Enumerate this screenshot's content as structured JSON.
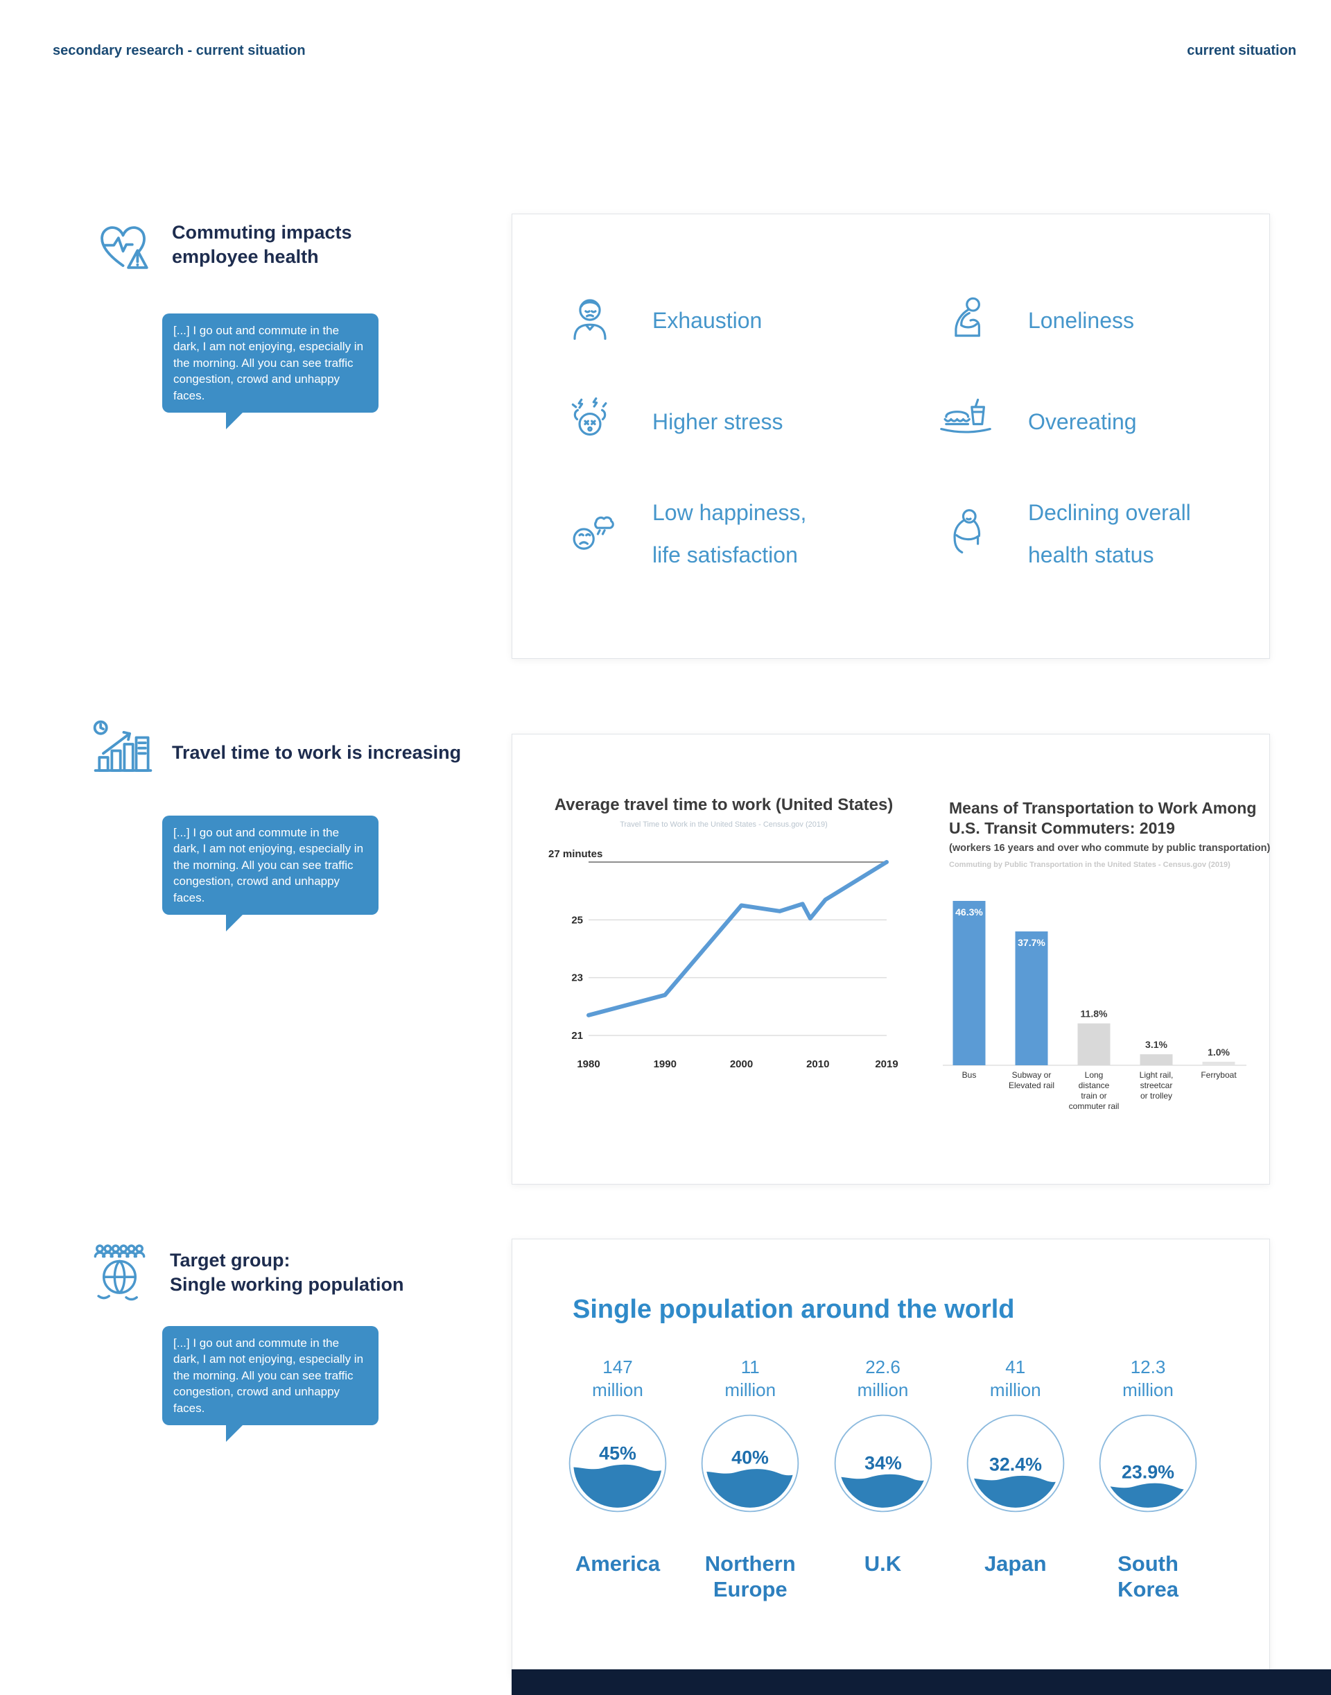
{
  "header": {
    "left": "secondary research - current situation",
    "right": "current situation"
  },
  "quote": {
    "text": "[...] I go out and commute in the dark, I am not enjoying, especially in the morning. All you can see traffic congestion, crowd and unhappy faces."
  },
  "sections": {
    "health": {
      "title1": "Commuting impacts",
      "title2": "employee health",
      "items": [
        {
          "line1": "Exhaustion"
        },
        {
          "line1": "Loneliness"
        },
        {
          "line1": "Higher stress"
        },
        {
          "line1": "Overeating"
        },
        {
          "line1": "Low happiness,",
          "line2": "life satisfaction"
        },
        {
          "line1": "Declining overall",
          "line2": "health status"
        }
      ]
    },
    "travel": {
      "title": "Travel time to work is increasing"
    },
    "target": {
      "title1": "Target group:",
      "title2": "Single working population"
    }
  },
  "chart_data": [
    {
      "type": "line",
      "title": "Average travel time to work (United States)",
      "subtitle": "Travel Time to Work in the United States - Census.gov (2019)",
      "x": [
        1980,
        1990,
        2000,
        2005,
        2008,
        2009,
        2011,
        2019
      ],
      "y": [
        21.7,
        22.4,
        25.5,
        25.3,
        25.55,
        25.05,
        25.7,
        27.0
      ],
      "ylim": [
        21,
        27
      ],
      "yticks": [
        21,
        23,
        25,
        27
      ],
      "ytick_labels": [
        "21",
        "23",
        "25",
        "27 minutes"
      ],
      "xticks": [
        1980,
        1990,
        2000,
        2010,
        2019
      ],
      "line_color": "#5b9bd5",
      "grid": true
    },
    {
      "type": "bar",
      "title": "Means of Transportation to Work Among U.S. Transit Commuters: 2019",
      "subtitle": "(workers 16 years and over who commute by public transportation)",
      "source": "Commuting by Public Transportation in the United States - Census.gov (2019)",
      "categories": [
        "Bus",
        "Subway or Elevated rail",
        "Long distance train or commuter rail",
        "Light rail, streetcar or trolley",
        "Ferryboat"
      ],
      "cat_lines": [
        [
          "Bus"
        ],
        [
          "Subway or",
          "Elevated rail"
        ],
        [
          "Long",
          "distance",
          "train or",
          "commuter rail"
        ],
        [
          "Light rail,",
          "streetcar",
          "or trolley"
        ],
        [
          "Ferryboat"
        ]
      ],
      "values": [
        46.3,
        37.7,
        11.8,
        3.1,
        1.0
      ],
      "value_labels": [
        "46.3%",
        "37.7%",
        "11.8%",
        "3.1%",
        "1.0%"
      ],
      "colors": [
        "#5b9bd5",
        "#5b9bd5",
        "#d9d9d9",
        "#d9d9d9",
        "#e4e4e4"
      ],
      "ylim": [
        0,
        50
      ]
    },
    {
      "type": "liquid-circles",
      "title": "Single population around the world",
      "water_color": "#2e80b9",
      "items": [
        {
          "value": "147",
          "unit": "million",
          "percent": 45,
          "percent_label": "45%",
          "country": "America"
        },
        {
          "value": "11",
          "unit": "million",
          "percent": 40,
          "percent_label": "40%",
          "country": "Northern Europe"
        },
        {
          "value": "22.6",
          "unit": "million",
          "percent": 34,
          "percent_label": "34%",
          "country": "U.K"
        },
        {
          "value": "41",
          "unit": "million",
          "percent": 32.4,
          "percent_label": "32.4%",
          "country": "Japan"
        },
        {
          "value": "12.3",
          "unit": "million",
          "percent": 23.9,
          "percent_label": "23.9%",
          "country": "South Korea"
        }
      ]
    }
  ]
}
